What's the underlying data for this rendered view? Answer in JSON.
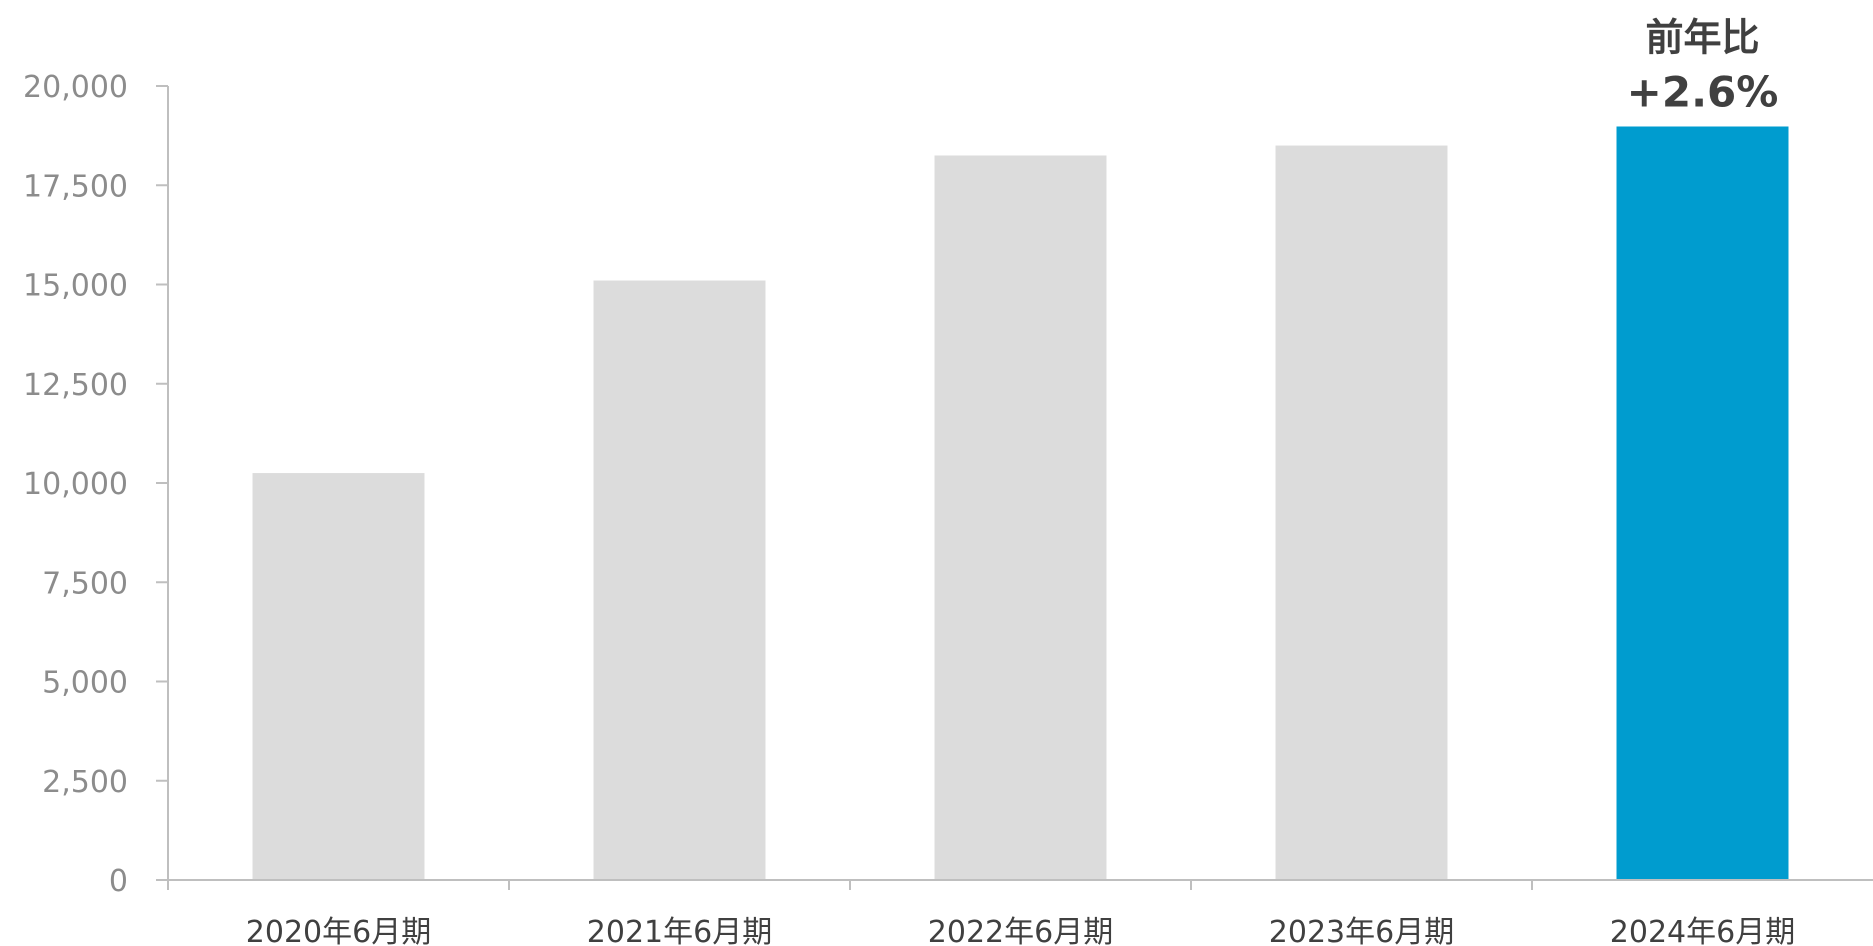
{
  "chart_data": {
    "type": "bar",
    "categories": [
      "2020年6月期",
      "2021年6月期",
      "2022年6月期",
      "2023年6月期",
      "2024年6月期"
    ],
    "values": [
      10250,
      15100,
      18250,
      18500,
      18980
    ],
    "ylim": [
      0,
      20000
    ],
    "yticks": [
      0,
      2500,
      5000,
      7500,
      10000,
      12500,
      15000,
      17500,
      20000
    ],
    "ytick_labels": [
      "0",
      "2,500",
      "5,000",
      "7,500",
      "10,000",
      "12,500",
      "15,000",
      "17,500",
      "20,000"
    ],
    "grid": false,
    "colors": {
      "default_bar": "#dcdcdc",
      "highlight_bar": "#009ccf",
      "axis": "#bfbfbf",
      "tick_text": "#8c8c8c",
      "category_text": "#404040",
      "annotation_text": "#404040"
    },
    "highlight_index": 4,
    "annotation": {
      "category": "2024年6月期",
      "line1": "前年比",
      "line2": "+2.6%"
    }
  }
}
